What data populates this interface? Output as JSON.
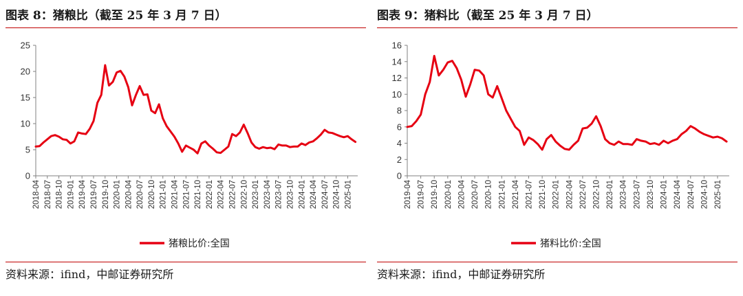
{
  "panels": [
    {
      "title": "图表 8：猪粮比（截至 25 年 3 月 7 日）",
      "source": "资料来源：ifind，中邮证券研究所",
      "chart_data": {
        "type": "line",
        "series": [
          {
            "name": "猪粮比价:全国",
            "color": "#e60012",
            "points": [
              [
                "2018-04",
                5.6
              ],
              [
                "2018-05",
                5.7
              ],
              [
                "2018-06",
                6.4
              ],
              [
                "2018-07",
                7.0
              ],
              [
                "2018-08",
                7.6
              ],
              [
                "2018-09",
                7.8
              ],
              [
                "2018-10",
                7.5
              ],
              [
                "2018-11",
                7.0
              ],
              [
                "2018-12",
                6.9
              ],
              [
                "2019-01",
                6.2
              ],
              [
                "2019-02",
                6.6
              ],
              [
                "2019-03",
                8.3
              ],
              [
                "2019-04",
                8.1
              ],
              [
                "2019-05",
                8.0
              ],
              [
                "2019-06",
                9.0
              ],
              [
                "2019-07",
                10.5
              ],
              [
                "2019-08",
                14.0
              ],
              [
                "2019-09",
                15.5
              ],
              [
                "2019-10",
                21.2
              ],
              [
                "2019-11",
                17.3
              ],
              [
                "2019-12",
                18.0
              ],
              [
                "2020-01",
                19.8
              ],
              [
                "2020-02",
                20.1
              ],
              [
                "2020-03",
                19.0
              ],
              [
                "2020-04",
                17.0
              ],
              [
                "2020-05",
                13.5
              ],
              [
                "2020-06",
                15.5
              ],
              [
                "2020-07",
                17.2
              ],
              [
                "2020-08",
                15.5
              ],
              [
                "2020-09",
                15.6
              ],
              [
                "2020-10",
                12.5
              ],
              [
                "2020-11",
                12.0
              ],
              [
                "2020-12",
                13.7
              ],
              [
                "2021-01",
                11.0
              ],
              [
                "2021-02",
                9.5
              ],
              [
                "2021-03",
                8.5
              ],
              [
                "2021-04",
                7.5
              ],
              [
                "2021-05",
                6.2
              ],
              [
                "2021-06",
                4.6
              ],
              [
                "2021-07",
                5.8
              ],
              [
                "2021-08",
                5.4
              ],
              [
                "2021-09",
                5.0
              ],
              [
                "2021-10",
                4.3
              ],
              [
                "2021-11",
                6.2
              ],
              [
                "2021-12",
                6.6
              ],
              [
                "2022-01",
                5.8
              ],
              [
                "2022-02",
                5.2
              ],
              [
                "2022-03",
                4.5
              ],
              [
                "2022-04",
                4.4
              ],
              [
                "2022-05",
                5.0
              ],
              [
                "2022-06",
                5.6
              ],
              [
                "2022-07",
                8.0
              ],
              [
                "2022-08",
                7.6
              ],
              [
                "2022-09",
                8.3
              ],
              [
                "2022-10",
                9.8
              ],
              [
                "2022-11",
                8.2
              ],
              [
                "2022-12",
                6.4
              ],
              [
                "2023-01",
                5.5
              ],
              [
                "2023-02",
                5.2
              ],
              [
                "2023-03",
                5.5
              ],
              [
                "2023-04",
                5.3
              ],
              [
                "2023-05",
                5.4
              ],
              [
                "2023-06",
                5.1
              ],
              [
                "2023-07",
                6.0
              ],
              [
                "2023-08",
                5.8
              ],
              [
                "2023-09",
                5.8
              ],
              [
                "2023-10",
                5.5
              ],
              [
                "2023-11",
                5.6
              ],
              [
                "2023-12",
                5.6
              ],
              [
                "2024-01",
                6.2
              ],
              [
                "2024-02",
                5.9
              ],
              [
                "2024-03",
                6.4
              ],
              [
                "2024-04",
                6.6
              ],
              [
                "2024-05",
                7.2
              ],
              [
                "2024-06",
                7.9
              ],
              [
                "2024-07",
                8.8
              ],
              [
                "2024-08",
                8.3
              ],
              [
                "2024-09",
                8.2
              ],
              [
                "2024-10",
                7.9
              ],
              [
                "2024-11",
                7.6
              ],
              [
                "2024-12",
                7.4
              ],
              [
                "2025-01",
                7.6
              ],
              [
                "2025-02",
                7.0
              ],
              [
                "2025-03",
                6.5
              ]
            ]
          }
        ],
        "x_range": [
          "2018-04",
          "2025-03"
        ],
        "x_ticks": [
          "2018-04",
          "2018-07",
          "2018-10",
          "2019-01",
          "2019-04",
          "2019-07",
          "2019-10",
          "2020-01",
          "2020-04",
          "2020-07",
          "2020-10",
          "2021-01",
          "2021-04",
          "2021-07",
          "2021-10",
          "2022-01",
          "2022-04",
          "2022-07",
          "2022-10",
          "2023-01",
          "2023-04",
          "2023-07",
          "2023-10",
          "2024-01",
          "2024-04",
          "2024-07",
          "2024-10",
          "2025-01"
        ],
        "y_ticks": [
          "0",
          "5",
          "10",
          "15",
          "20",
          "25"
        ],
        "ylim": [
          0,
          25
        ],
        "grid": false,
        "legend_position": "bottom-center"
      }
    },
    {
      "title": "图表 9：猪料比（截至 25 年 3 月 7 日）",
      "source": "资料来源：ifind，中邮证券研究所",
      "chart_data": {
        "type": "line",
        "series": [
          {
            "name": "猪料比价:全国",
            "color": "#e60012",
            "points": [
              [
                "2019-04",
                6.0
              ],
              [
                "2019-05",
                6.1
              ],
              [
                "2019-06",
                6.7
              ],
              [
                "2019-07",
                7.5
              ],
              [
                "2019-08",
                10.0
              ],
              [
                "2019-09",
                11.5
              ],
              [
                "2019-10",
                14.7
              ],
              [
                "2019-11",
                12.3
              ],
              [
                "2019-12",
                13.0
              ],
              [
                "2020-01",
                13.9
              ],
              [
                "2020-02",
                14.1
              ],
              [
                "2020-03",
                13.2
              ],
              [
                "2020-04",
                11.8
              ],
              [
                "2020-05",
                9.7
              ],
              [
                "2020-06",
                11.2
              ],
              [
                "2020-07",
                13.0
              ],
              [
                "2020-08",
                12.9
              ],
              [
                "2020-09",
                12.3
              ],
              [
                "2020-10",
                10.0
              ],
              [
                "2020-11",
                9.6
              ],
              [
                "2020-12",
                11.0
              ],
              [
                "2021-01",
                9.5
              ],
              [
                "2021-02",
                8.0
              ],
              [
                "2021-03",
                7.0
              ],
              [
                "2021-04",
                6.0
              ],
              [
                "2021-05",
                5.5
              ],
              [
                "2021-06",
                3.8
              ],
              [
                "2021-07",
                4.7
              ],
              [
                "2021-08",
                4.4
              ],
              [
                "2021-09",
                3.9
              ],
              [
                "2021-10",
                3.2
              ],
              [
                "2021-11",
                4.5
              ],
              [
                "2021-12",
                5.0
              ],
              [
                "2022-01",
                4.2
              ],
              [
                "2022-02",
                3.7
              ],
              [
                "2022-03",
                3.3
              ],
              [
                "2022-04",
                3.2
              ],
              [
                "2022-05",
                3.8
              ],
              [
                "2022-06",
                4.3
              ],
              [
                "2022-07",
                5.8
              ],
              [
                "2022-08",
                5.9
              ],
              [
                "2022-09",
                6.4
              ],
              [
                "2022-10",
                7.3
              ],
              [
                "2022-11",
                6.1
              ],
              [
                "2022-12",
                4.5
              ],
              [
                "2023-01",
                4.0
              ],
              [
                "2023-02",
                3.8
              ],
              [
                "2023-03",
                4.2
              ],
              [
                "2023-04",
                3.9
              ],
              [
                "2023-05",
                3.9
              ],
              [
                "2023-06",
                3.8
              ],
              [
                "2023-07",
                4.5
              ],
              [
                "2023-08",
                4.3
              ],
              [
                "2023-09",
                4.2
              ],
              [
                "2023-10",
                3.9
              ],
              [
                "2023-11",
                4.0
              ],
              [
                "2023-12",
                3.8
              ],
              [
                "2024-01",
                4.3
              ],
              [
                "2024-02",
                4.0
              ],
              [
                "2024-03",
                4.3
              ],
              [
                "2024-04",
                4.5
              ],
              [
                "2024-05",
                5.1
              ],
              [
                "2024-06",
                5.5
              ],
              [
                "2024-07",
                6.1
              ],
              [
                "2024-08",
                5.8
              ],
              [
                "2024-09",
                5.4
              ],
              [
                "2024-10",
                5.1
              ],
              [
                "2024-11",
                4.9
              ],
              [
                "2024-12",
                4.7
              ],
              [
                "2025-01",
                4.8
              ],
              [
                "2025-02",
                4.6
              ],
              [
                "2025-03",
                4.2
              ]
            ]
          }
        ],
        "x_range": [
          "2019-04",
          "2025-03"
        ],
        "x_ticks": [
          "2019-04",
          "2019-07",
          "2019-10",
          "2020-01",
          "2020-04",
          "2020-07",
          "2020-10",
          "2021-01",
          "2021-04",
          "2021-07",
          "2021-10",
          "2022-01",
          "2022-04",
          "2022-07",
          "2022-10",
          "2023-01",
          "2023-04",
          "2023-07",
          "2023-10",
          "2024-01",
          "2024-04",
          "2024-07",
          "2024-10",
          "2025-01"
        ],
        "y_ticks": [
          "0",
          "2",
          "4",
          "6",
          "8",
          "10",
          "12",
          "14",
          "16"
        ],
        "ylim": [
          0,
          16
        ],
        "grid": false,
        "legend_position": "bottom-center"
      }
    }
  ]
}
